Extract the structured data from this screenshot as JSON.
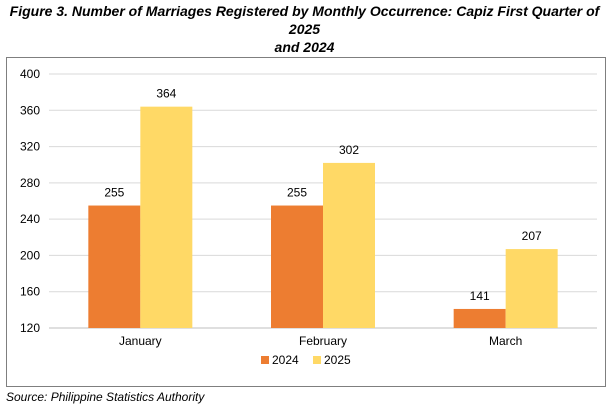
{
  "title_line1": "Figure 3. Number of Marriages Registered by Monthly Occurrence: Capiz First Quarter of 2025",
  "title_line2": "and 2024",
  "source": "Source: Philippine Statistics Authority",
  "colors": {
    "2024": "#ED7D31",
    "2025": "#FFD966",
    "grid": "#D9D9D9",
    "axis": "#BFBFBF"
  },
  "chart_data": {
    "type": "bar",
    "categories": [
      "January",
      "February",
      "March"
    ],
    "series": [
      {
        "name": "2024",
        "values": [
          255,
          255,
          141
        ]
      },
      {
        "name": "2025",
        "values": [
          364,
          302,
          207
        ]
      }
    ],
    "ylim": [
      120,
      400
    ],
    "yticks": [
      120,
      160,
      200,
      240,
      280,
      320,
      360,
      400
    ],
    "grid": true,
    "legend": "bottom",
    "data_labels": true
  }
}
